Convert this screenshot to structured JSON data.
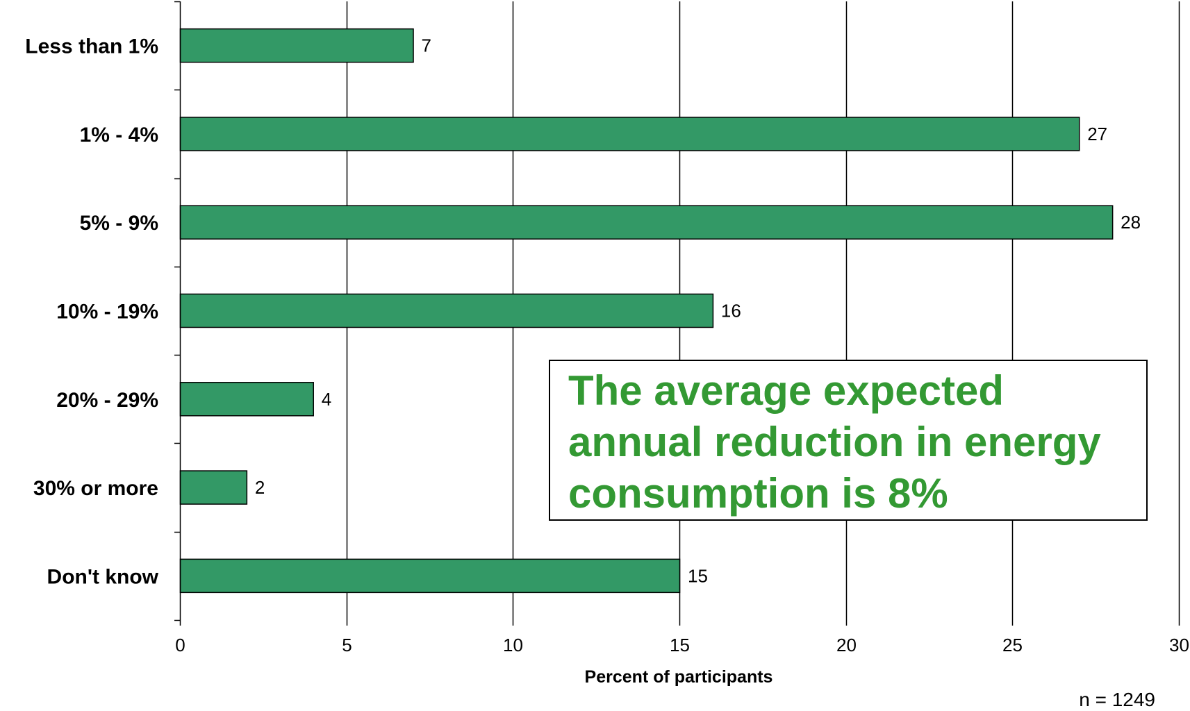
{
  "chart_data": {
    "type": "bar",
    "orientation": "horizontal",
    "categories": [
      "Less than 1%",
      "1% - 4%",
      "5% - 9%",
      "10% - 19%",
      "20% - 29%",
      "30% or more",
      "Don't know"
    ],
    "values": [
      7,
      27,
      28,
      16,
      4,
      2,
      15
    ],
    "value_labels": [
      "7",
      "27",
      "28",
      "16",
      "4",
      "2",
      "15"
    ],
    "xlabel": "Percent of participants",
    "ylabel": "",
    "xlim": [
      0,
      30
    ],
    "xticks": [
      0,
      5,
      10,
      15,
      20,
      25,
      30
    ],
    "xtick_labels": [
      "0",
      "5",
      "10",
      "15",
      "20",
      "25",
      "30"
    ],
    "grid": "vertical",
    "legend": "none",
    "annotation": "The average expected\nannual reduction in energy\nconsumption is 8%",
    "sample_note": "n = 1249"
  },
  "colors": {
    "bar_fill": "#339966",
    "bar_stroke": "#000000",
    "callout_text": "#339933",
    "grid": "#000000"
  }
}
